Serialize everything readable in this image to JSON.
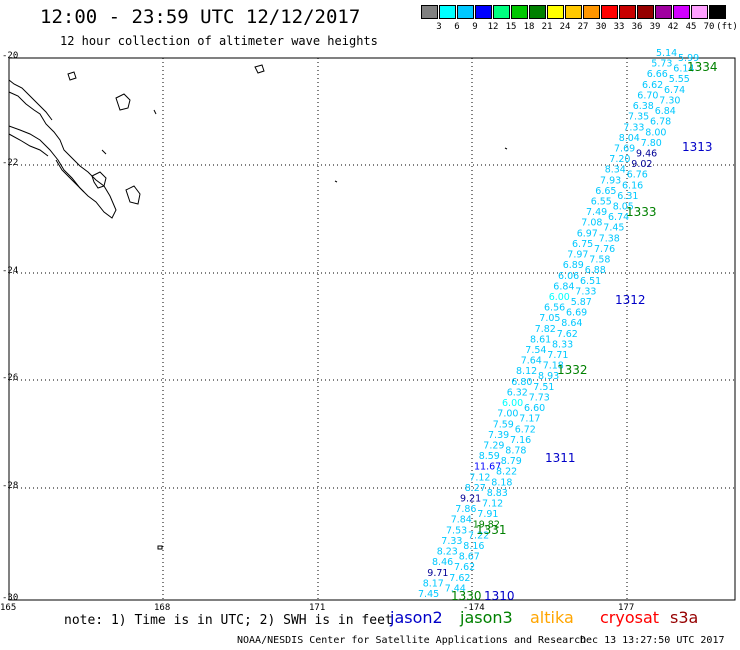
{
  "header": {
    "title": "12:00 - 23:59 UTC 12/12/2017",
    "subtitle": "12 hour collection of altimeter wave heights"
  },
  "color_scale": {
    "unit_label": "(ft)",
    "ticks": [
      "3",
      "6",
      "9",
      "12",
      "15",
      "18",
      "21",
      "24",
      "27",
      "30",
      "33",
      "36",
      "39",
      "42",
      "45",
      "70"
    ],
    "colors": [
      "#808080",
      "#00ffff",
      "#00c8ff",
      "#0000ff",
      "#00ff80",
      "#00c800",
      "#008000",
      "#ffff00",
      "#ffc800",
      "#ff9600",
      "#ff0000",
      "#c80000",
      "#960000",
      "#a000a0",
      "#d200ff",
      "#ffa0ff",
      "#000000"
    ]
  },
  "axes": {
    "lat_labels": [
      "-20",
      "-22",
      "-24",
      "-26",
      "-28",
      "-30"
    ],
    "lon_labels": [
      "165",
      "168",
      "171",
      "-174",
      "177"
    ]
  },
  "swh_points": [
    {
      "v": "5.14",
      "c": "#00c8ff"
    },
    {
      "v": "5.99",
      "c": "#00c8ff"
    },
    {
      "v": "5.73",
      "c": "#00c8ff"
    },
    {
      "v": "6.14",
      "c": "#00c8ff"
    },
    {
      "v": "6.66",
      "c": "#00c8ff"
    },
    {
      "v": "5.55",
      "c": "#00c8ff"
    },
    {
      "v": "6.62",
      "c": "#00c8ff"
    },
    {
      "v": "6.74",
      "c": "#00c8ff"
    },
    {
      "v": "6.70",
      "c": "#00c8ff"
    },
    {
      "v": "7.30",
      "c": "#00c8ff"
    },
    {
      "v": "6.38",
      "c": "#00c8ff"
    },
    {
      "v": "6.84",
      "c": "#00c8ff"
    },
    {
      "v": "7.35",
      "c": "#00c8ff"
    },
    {
      "v": "6.78",
      "c": "#00c8ff"
    },
    {
      "v": "7.33",
      "c": "#00c8ff"
    },
    {
      "v": "8.00",
      "c": "#00c8ff"
    },
    {
      "v": "8.04",
      "c": "#00c8ff"
    },
    {
      "v": "7.80",
      "c": "#00c8ff"
    },
    {
      "v": "7.69",
      "c": "#00c8ff"
    },
    {
      "v": "9.46",
      "c": "#000096"
    },
    {
      "v": "7.20",
      "c": "#00c8ff"
    },
    {
      "v": "9.02",
      "c": "#000096"
    },
    {
      "v": "8.34",
      "c": "#00c8ff"
    },
    {
      "v": "6.76",
      "c": "#00c8ff"
    },
    {
      "v": "7.93",
      "c": "#00c8ff"
    },
    {
      "v": "6.16",
      "c": "#00c8ff"
    },
    {
      "v": "6.65",
      "c": "#00c8ff"
    },
    {
      "v": "6.31",
      "c": "#00c8ff"
    },
    {
      "v": "6.55",
      "c": "#00c8ff"
    },
    {
      "v": "8.05",
      "c": "#00c8ff"
    },
    {
      "v": "7.49",
      "c": "#00c8ff"
    },
    {
      "v": "6.74",
      "c": "#00c8ff"
    },
    {
      "v": "7.08",
      "c": "#00c8ff"
    },
    {
      "v": "7.45",
      "c": "#00c8ff"
    },
    {
      "v": "6.97",
      "c": "#00c8ff"
    },
    {
      "v": "7.38",
      "c": "#00c8ff"
    },
    {
      "v": "6.75",
      "c": "#00c8ff"
    },
    {
      "v": "7.76",
      "c": "#00c8ff"
    },
    {
      "v": "7.97",
      "c": "#00c8ff"
    },
    {
      "v": "7.58",
      "c": "#00c8ff"
    },
    {
      "v": "6.89",
      "c": "#00c8ff"
    },
    {
      "v": "6.88",
      "c": "#00c8ff"
    },
    {
      "v": "6.06",
      "c": "#00c8ff"
    },
    {
      "v": "6.51",
      "c": "#00c8ff"
    },
    {
      "v": "6.84",
      "c": "#00c8ff"
    },
    {
      "v": "7.33",
      "c": "#00c8ff"
    },
    {
      "v": "6.00",
      "c": "#00ffff"
    },
    {
      "v": "5.87",
      "c": "#00c8ff"
    },
    {
      "v": "6.56",
      "c": "#00c8ff"
    },
    {
      "v": "6.69",
      "c": "#00c8ff"
    },
    {
      "v": "7.05",
      "c": "#00c8ff"
    },
    {
      "v": "8.64",
      "c": "#00c8ff"
    },
    {
      "v": "7.82",
      "c": "#00c8ff"
    },
    {
      "v": "7.62",
      "c": "#00c8ff"
    },
    {
      "v": "8.61",
      "c": "#00c8ff"
    },
    {
      "v": "8.33",
      "c": "#00c8ff"
    },
    {
      "v": "7.54",
      "c": "#00c8ff"
    },
    {
      "v": "7.71",
      "c": "#00c8ff"
    },
    {
      "v": "7.64",
      "c": "#00c8ff"
    },
    {
      "v": "7.18",
      "c": "#00c8ff"
    },
    {
      "v": "8.12",
      "c": "#00c8ff"
    },
    {
      "v": "8.93",
      "c": "#00c8ff"
    },
    {
      "v": "6.80",
      "c": "#00c8ff"
    },
    {
      "v": "7.51",
      "c": "#00c8ff"
    },
    {
      "v": "6.32",
      "c": "#00c8ff"
    },
    {
      "v": "7.73",
      "c": "#00c8ff"
    },
    {
      "v": "6.00",
      "c": "#00ffff"
    },
    {
      "v": "6.60",
      "c": "#00c8ff"
    },
    {
      "v": "7.00",
      "c": "#00c8ff"
    },
    {
      "v": "7.17",
      "c": "#00c8ff"
    },
    {
      "v": "7.59",
      "c": "#00c8ff"
    },
    {
      "v": "6.72",
      "c": "#00c8ff"
    },
    {
      "v": "7.39",
      "c": "#00c8ff"
    },
    {
      "v": "7.16",
      "c": "#00c8ff"
    },
    {
      "v": "7.29",
      "c": "#00c8ff"
    },
    {
      "v": "8.78",
      "c": "#00c8ff"
    },
    {
      "v": "8.59",
      "c": "#00c8ff"
    },
    {
      "v": "8.79",
      "c": "#00c8ff"
    },
    {
      "v": "11.67",
      "c": "#0000ff"
    },
    {
      "v": "8.22",
      "c": "#00c8ff"
    },
    {
      "v": "7.12",
      "c": "#00c8ff"
    },
    {
      "v": "8.18",
      "c": "#00c8ff"
    },
    {
      "v": "8.27",
      "c": "#00c8ff"
    },
    {
      "v": "8.83",
      "c": "#00c8ff"
    },
    {
      "v": "9.21",
      "c": "#000096"
    },
    {
      "v": "7.12",
      "c": "#00c8ff"
    },
    {
      "v": "7.86",
      "c": "#00c8ff"
    },
    {
      "v": "7.91",
      "c": "#00c8ff"
    },
    {
      "v": "7.84",
      "c": "#00c8ff"
    },
    {
      "v": "19.82",
      "c": "#008000"
    },
    {
      "v": "7.53",
      "c": "#00c8ff"
    },
    {
      "v": "7.22",
      "c": "#00c8ff"
    },
    {
      "v": "7.33",
      "c": "#00c8ff"
    },
    {
      "v": "8.16",
      "c": "#00c8ff"
    },
    {
      "v": "8.23",
      "c": "#00c8ff"
    },
    {
      "v": "8.67",
      "c": "#00c8ff"
    },
    {
      "v": "8.46",
      "c": "#00c8ff"
    },
    {
      "v": "7.62",
      "c": "#00c8ff"
    },
    {
      "v": "9.71",
      "c": "#000096"
    },
    {
      "v": "7.62",
      "c": "#00c8ff"
    },
    {
      "v": "8.17",
      "c": "#00c8ff"
    },
    {
      "v": "7.44",
      "c": "#00c8ff"
    },
    {
      "v": "7.45",
      "c": "#00c8ff"
    }
  ],
  "time_labels": [
    {
      "text": "1334",
      "color": "#008000"
    },
    {
      "text": "1313",
      "color": "#0000c8"
    },
    {
      "text": "1333",
      "color": "#008000"
    },
    {
      "text": "1312",
      "color": "#0000c8"
    },
    {
      "text": "1332",
      "color": "#008000"
    },
    {
      "text": "1311",
      "color": "#0000c8"
    },
    {
      "text": "1331",
      "color": "#008000"
    },
    {
      "text": "1330",
      "color": "#008000"
    },
    {
      "text": "1310",
      "color": "#0000c8"
    }
  ],
  "legend": {
    "note": "note: 1) Time is in UTC; 2) SWH is in feet",
    "satellites": [
      {
        "name": "jason2",
        "color": "#0000c8"
      },
      {
        "name": "jason3",
        "color": "#008000"
      },
      {
        "name": "altika",
        "color": "#ffa500"
      },
      {
        "name": "cryosat",
        "color": "#ff0000"
      },
      {
        "name": "s3a",
        "color": "#960000"
      }
    ]
  },
  "footer": {
    "credit": "NOAA/NESDIS Center for Satellite Applications and Research",
    "timestamp": "Dec 13 13:27:50 UTC 2017"
  }
}
